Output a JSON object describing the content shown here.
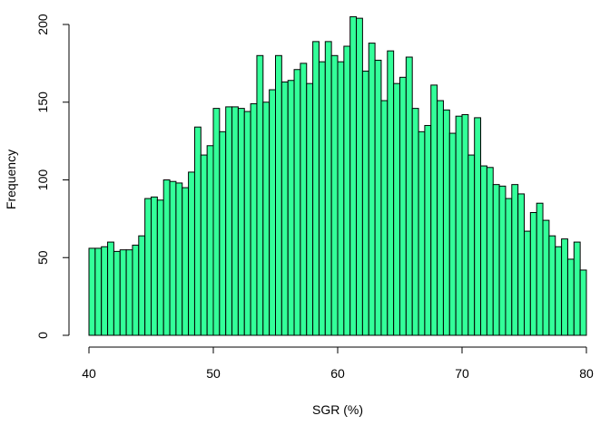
{
  "chart_data": {
    "type": "bar",
    "subtype": "histogram",
    "xlabel": "SGR (%)",
    "ylabel": "Frequency",
    "xlim": [
      40,
      80
    ],
    "ylim": [
      0,
      205
    ],
    "bin_width": 0.5,
    "bin_start": 40,
    "bar_color": "#33ff99",
    "x_ticks": [
      40,
      50,
      60,
      70,
      80
    ],
    "y_ticks": [
      0,
      50,
      100,
      150,
      200
    ],
    "values": [
      56,
      56,
      57,
      60,
      54,
      55,
      55,
      58,
      64,
      88,
      89,
      87,
      100,
      99,
      98,
      95,
      105,
      134,
      116,
      122,
      146,
      131,
      147,
      147,
      146,
      144,
      149,
      180,
      150,
      158,
      180,
      163,
      164,
      171,
      175,
      162,
      189,
      176,
      189,
      180,
      176,
      186,
      205,
      204,
      170,
      188,
      177,
      151,
      183,
      162,
      166,
      179,
      146,
      131,
      135,
      161,
      151,
      145,
      130,
      141,
      142,
      116,
      140,
      109,
      108,
      97,
      96,
      88,
      97,
      91,
      67,
      79,
      85,
      74,
      64,
      57,
      62,
      49,
      60,
      42
    ]
  }
}
